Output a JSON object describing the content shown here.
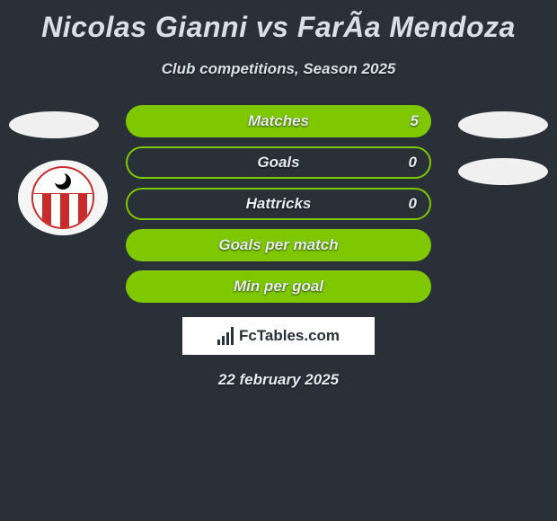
{
  "title": "Nicolas Gianni vs FarÃ­a Mendoza",
  "subtitle": "Club competitions, Season 2025",
  "date": "22 february 2025",
  "logo_text": "FcTables.com",
  "colors": {
    "background": "#2a3038",
    "accent": "#7fc800",
    "text": "#e6ebef",
    "crest_red": "#c92a2a"
  },
  "stats": [
    {
      "label": "Matches",
      "value": "5",
      "left_fill": "green-fill",
      "show_value": true
    },
    {
      "label": "Goals",
      "value": "0",
      "left_fill": "green-border",
      "show_value": true
    },
    {
      "label": "Hattricks",
      "value": "0",
      "left_fill": "green-border",
      "show_value": true
    },
    {
      "label": "Goals per match",
      "value": "",
      "left_fill": "green-fill",
      "show_value": false
    },
    {
      "label": "Min per goal",
      "value": "",
      "left_fill": "green-fill",
      "show_value": false
    }
  ],
  "player_placeholders": {
    "left_count": 1,
    "right_count": 2,
    "club_crest_left": "estudiantes-merida"
  }
}
